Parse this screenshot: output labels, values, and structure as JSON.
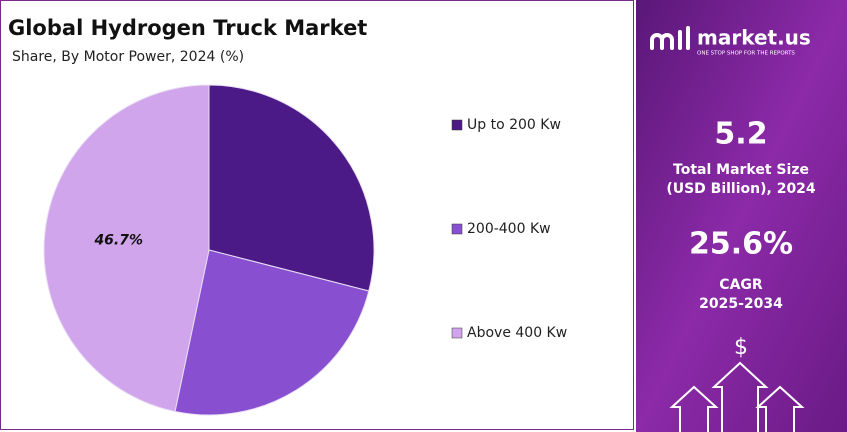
{
  "chart_data": {
    "type": "pie",
    "title": "Global Hydrogen Truck Market",
    "subtitle": "Share, By Motor Power, 2024 (%)",
    "categories": [
      "Up to 200 Kw",
      "200-400 Kw",
      "Above 400 Kw"
    ],
    "values": [
      29.0,
      24.3,
      46.7
    ],
    "value_labels": [
      null,
      null,
      "46.7%"
    ],
    "colors": [
      "#4b1a86",
      "#8850d0",
      "#d0a5ec"
    ],
    "legend": "right"
  },
  "sidebar": {
    "brand": "market.us",
    "tagline": "ONE STOP SHOP FOR THE REPORTS",
    "market_size": "5.2",
    "market_size_label": "Total Market Size",
    "market_size_unit": "(USD Billion), 2024",
    "cagr": "25.6%",
    "cagr_label": "CAGR",
    "cagr_period": "2025-2034",
    "currency_icon": "$"
  }
}
